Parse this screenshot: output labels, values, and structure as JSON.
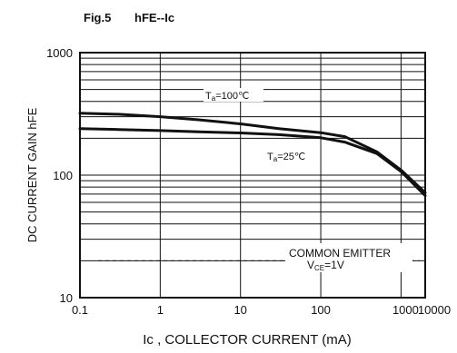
{
  "chart_data": {
    "type": "line",
    "title": "Fig.5",
    "subtitle": "hFE--Ic",
    "xlabel": "Ic , COLLECTOR CURRENT (mA)",
    "ylabel": "DC CURRENT GAIN hFE",
    "x_scale": "log",
    "y_scale": "log",
    "xlim": [
      0.1,
      2000
    ],
    "ylim": [
      10,
      1000
    ],
    "x_ticks": [
      "0.1",
      "1",
      "10",
      "100",
      "1000",
      "10000"
    ],
    "y_ticks": [
      "10",
      "100",
      "1000"
    ],
    "grid": true,
    "series": [
      {
        "name": "Ta=100℃",
        "x": [
          0.1,
          0.3,
          1,
          3,
          10,
          30,
          100,
          200,
          500,
          1000,
          2000
        ],
        "y": [
          320,
          314,
          300,
          283,
          262,
          240,
          222,
          206,
          155,
          110,
          72
        ]
      },
      {
        "name": "Ta=25℃",
        "x": [
          0.1,
          0.3,
          1,
          3,
          10,
          30,
          100,
          200,
          500,
          1000,
          2000
        ],
        "y": [
          240,
          236,
          231,
          226,
          221,
          214,
          202,
          186,
          150,
          107,
          68
        ]
      }
    ],
    "annotations": {
      "line1": "COMMON EMITTER",
      "line2": "VCE=1V",
      "value": 20
    }
  }
}
